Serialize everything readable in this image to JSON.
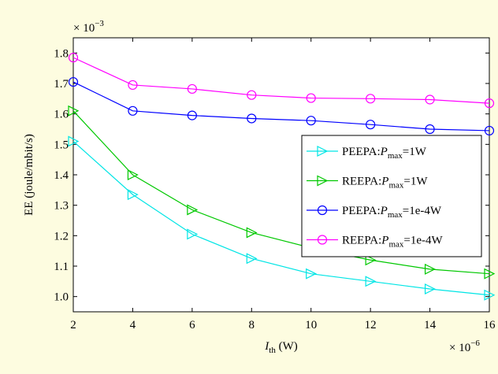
{
  "chart_data": {
    "type": "line",
    "background": "#fdfce0",
    "plot_background": "#ffffff",
    "xlabel_main": "I",
    "xlabel_sub": "th",
    "xlabel_unit": " (W)",
    "ylabel": "EE (joule/mbit/s)",
    "x_multiplier_base": "× 10",
    "x_multiplier_exp": "−6",
    "y_multiplier_base": "× 10",
    "y_multiplier_exp": "−3",
    "xlim": [
      2,
      16
    ],
    "ylim": [
      0.95,
      1.85
    ],
    "xticks": [
      2,
      4,
      6,
      8,
      10,
      12,
      14,
      16
    ],
    "xtick_labels": [
      "2",
      "4",
      "6",
      "8",
      "10",
      "12",
      "14",
      "16"
    ],
    "yticks": [
      1.0,
      1.1,
      1.2,
      1.3,
      1.4,
      1.5,
      1.6,
      1.7,
      1.8
    ],
    "ytick_labels": [
      "1.0",
      "1.1",
      "1.2",
      "1.3",
      "1.4",
      "1.5",
      "1.6",
      "1.7",
      "1.8"
    ],
    "grid": false,
    "legend_position": "center-right",
    "x": [
      2,
      4,
      6,
      8,
      10,
      12,
      14,
      16
    ],
    "series": [
      {
        "name": "PEEPA:Pmax=1W",
        "label_prefix": "PEEPA:",
        "label_P": "P",
        "label_sub": "max",
        "label_suffix": "=1W",
        "color": "#00e5e5",
        "marker": "triangle-right",
        "values": [
          1.51,
          1.335,
          1.205,
          1.125,
          1.075,
          1.05,
          1.025,
          1.005
        ]
      },
      {
        "name": "REEPA:Pmax=1W",
        "label_prefix": "REEPA:",
        "label_P": "P",
        "label_sub": "max",
        "label_suffix": "=1W",
        "color": "#00c800",
        "marker": "triangle-right",
        "values": [
          1.61,
          1.4,
          1.285,
          1.21,
          1.16,
          1.12,
          1.09,
          1.075
        ]
      },
      {
        "name": "PEEPA:Pmax=1e-4W",
        "label_prefix": "PEEPA:",
        "label_P": "P",
        "label_sub": "max",
        "label_suffix": "=1e-4W",
        "color": "#0000ff",
        "marker": "circle",
        "values": [
          1.705,
          1.61,
          1.595,
          1.585,
          1.578,
          1.565,
          1.55,
          1.545
        ]
      },
      {
        "name": "REEPA:Pmax=1e-4W",
        "label_prefix": "REEPA:",
        "label_P": "P",
        "label_sub": "max",
        "label_suffix": "=1e-4W",
        "color": "#ff00ff",
        "marker": "circle",
        "values": [
          1.785,
          1.695,
          1.682,
          1.662,
          1.652,
          1.65,
          1.647,
          1.635
        ]
      }
    ]
  }
}
